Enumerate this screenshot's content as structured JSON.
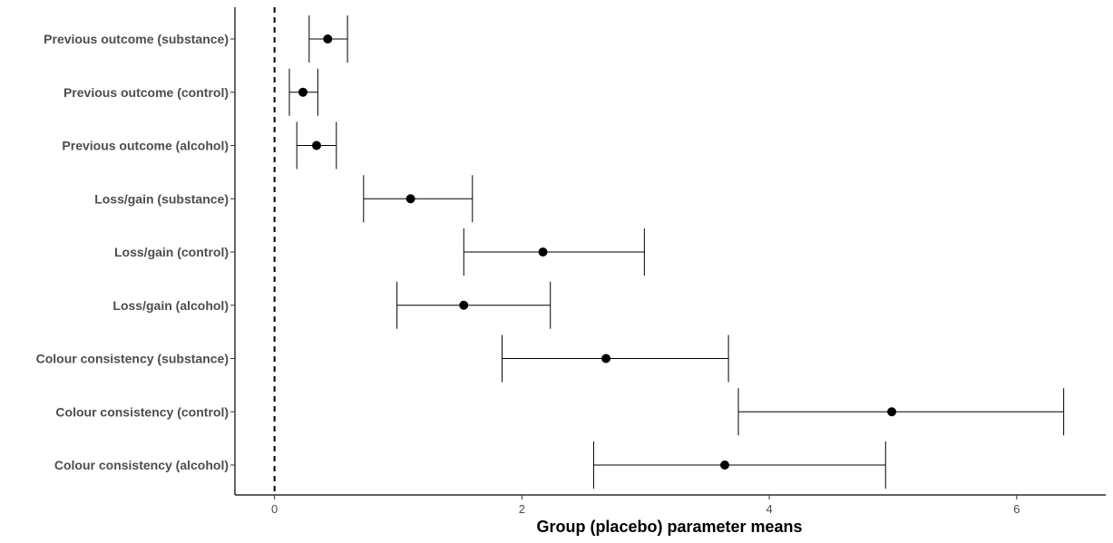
{
  "chart_data": {
    "type": "forest",
    "xlabel": "Group (placebo) parameter means",
    "ylabel": "",
    "xlim": [
      -0.32,
      6.72
    ],
    "xticks": [
      0,
      2,
      4,
      6
    ],
    "x_tick_labels": [
      "0",
      "2",
      "4",
      "6"
    ],
    "reference_line": {
      "x": 0,
      "style": "dashed"
    },
    "grid": false,
    "categories": [
      "Previous outcome (substance)",
      "Previous outcome (control)",
      "Previous outcome (alcohol)",
      "Loss/gain (substance)",
      "Loss/gain (control)",
      "Loss/gain (alcohol)",
      "Colour consistency (substance)",
      "Colour consistency (control)",
      "Colour consistency (alcohol)"
    ],
    "series": [
      {
        "mean": [
          0.43,
          0.23,
          0.34,
          1.1,
          2.17,
          1.53,
          2.68,
          4.99,
          3.64
        ],
        "lower": [
          0.28,
          0.12,
          0.18,
          0.72,
          1.53,
          0.99,
          1.84,
          3.75,
          2.58
        ],
        "upper": [
          0.59,
          0.35,
          0.5,
          1.6,
          2.99,
          2.23,
          3.67,
          6.38,
          4.94
        ]
      }
    ]
  },
  "colors": {
    "point": "#000000",
    "line": "#000000",
    "label": "#4d4d4d",
    "axis": "#000000"
  }
}
